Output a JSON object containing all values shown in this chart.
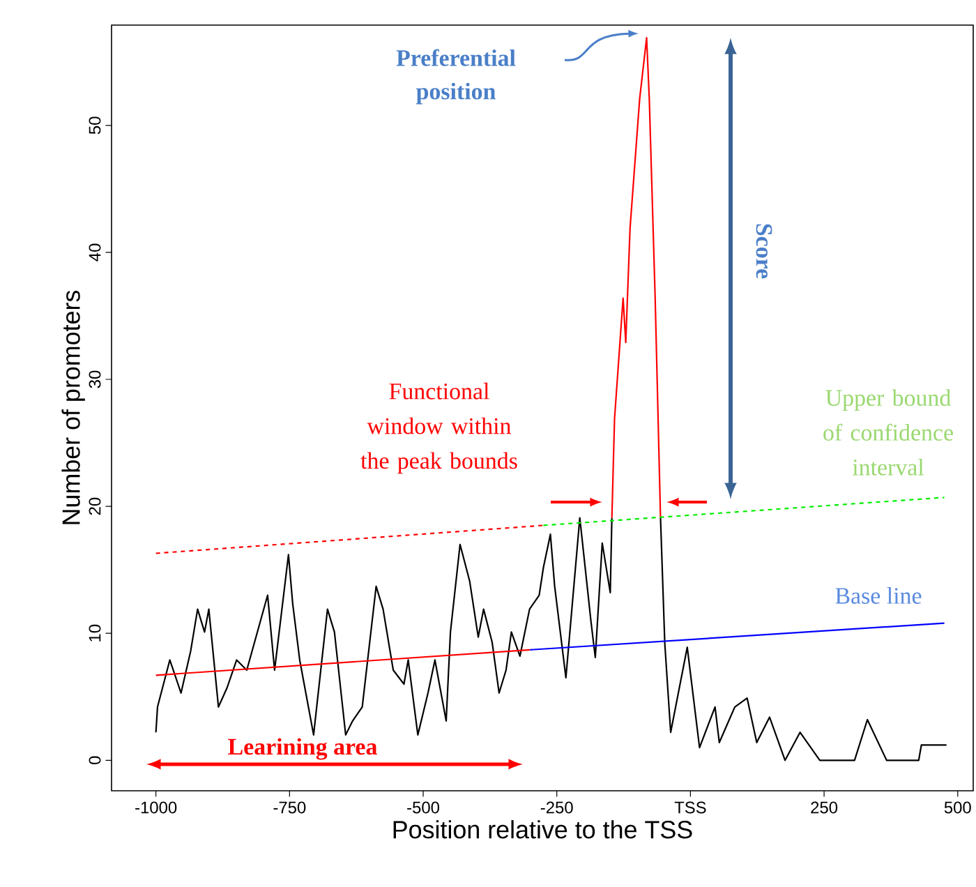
{
  "chart_data": {
    "type": "line",
    "xlabel": "Position relative to the TSS",
    "ylabel": "Number of promoters",
    "xlim": [
      -1083,
      529
    ],
    "ylim": [
      -2.4,
      57.9
    ],
    "xticks": [
      -1000,
      -750,
      -500,
      -250,
      {
        "value": 0,
        "label": "TSS"
      },
      250,
      500
    ],
    "yticks": [
      0,
      10,
      20,
      30,
      40,
      50
    ],
    "marker": "none",
    "series": [
      {
        "color": "#000000",
        "line_style": "solid",
        "x": [
          -1000,
          -997,
          -974,
          -953,
          -935,
          -922,
          -909,
          -901,
          -883,
          -867,
          -849,
          -830,
          -791,
          -778,
          -752,
          -744,
          -731,
          -705,
          -679,
          -666,
          -645,
          -632,
          -614,
          -588,
          -575,
          -556,
          -536,
          -528,
          -510,
          -491,
          -478,
          -457,
          -449,
          -431,
          -413,
          -397,
          -387,
          -371,
          -358,
          -345,
          -335,
          -319,
          -301,
          -283,
          -275,
          -262,
          -254,
          -233,
          -207,
          -186,
          -178,
          -165,
          -150,
          -147,
          -100,
          -56,
          -48,
          -37,
          -6,
          17,
          46,
          54,
          83,
          106,
          124,
          148,
          177,
          205,
          242,
          307,
          331,
          367,
          427,
          432,
          479
        ],
        "values": [
          2.2,
          4.2,
          7.9,
          5.3,
          8.6,
          11.9,
          10.1,
          11.9,
          4.2,
          5.7,
          7.9,
          7.1,
          13.0,
          7.1,
          16.2,
          12.3,
          7.9,
          2.0,
          11.9,
          10.1,
          2.0,
          3.1,
          4.2,
          13.7,
          11.9,
          7.1,
          6.0,
          7.9,
          2.0,
          5.3,
          7.9,
          3.1,
          10.1,
          17.0,
          14.1,
          9.7,
          11.9,
          9.3,
          5.3,
          7.1,
          10.1,
          8.2,
          11.9,
          13.0,
          15.2,
          17.8,
          13.7,
          6.5,
          19.1,
          10.9,
          8.1,
          17.1,
          13.2,
          19.1,
          null,
          19.1,
          9.2,
          2.2,
          8.9,
          1.0,
          4.2,
          1.4,
          4.2,
          4.9,
          1.4,
          3.4,
          0,
          2.2,
          0,
          0,
          3.2,
          0,
          0,
          1.2,
          1.2
        ]
      },
      {
        "color": "#ff0000",
        "line_style": "solid",
        "x": [
          -147,
          -142,
          -126,
          -121,
          -113,
          -95,
          -82,
          -77,
          -66,
          -56
        ],
        "values": [
          19.1,
          26.9,
          36.4,
          32.9,
          41.9,
          52.1,
          56.9,
          52.1,
          36.4,
          19.1
        ]
      },
      {
        "color": "#ff0000",
        "line_style": "solid",
        "x": [
          -1000,
          -300
        ],
        "values": [
          6.7,
          8.7
        ]
      },
      {
        "color": "#0000ff",
        "line_style": "solid",
        "x": [
          -300,
          475
        ],
        "values": [
          8.7,
          10.8
        ]
      },
      {
        "color": "#ff0000",
        "line_style": "dashed",
        "x": [
          -1000,
          -275
        ],
        "values": [
          16.3,
          18.5
        ]
      },
      {
        "color": "#00ee00",
        "line_style": "dashed",
        "x": [
          -275,
          475
        ],
        "values": [
          18.5,
          20.7
        ]
      }
    ],
    "annotations": [
      "Preferential position",
      "Score",
      "Functional window within the peak bounds",
      "Upper bound of confidence interval",
      "Base line",
      "Learining area"
    ]
  }
}
